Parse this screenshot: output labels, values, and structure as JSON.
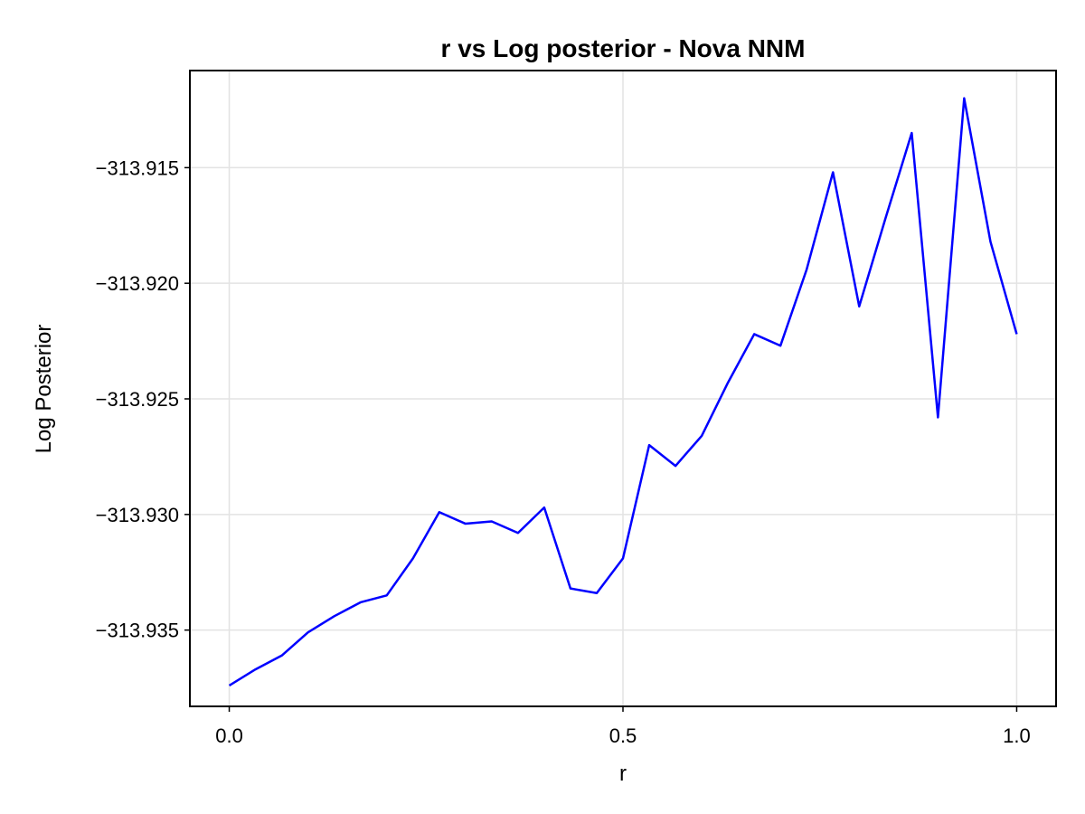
{
  "chart_data": {
    "type": "line",
    "title": "r vs Log posterior - Nova NNM",
    "xlabel": "r",
    "ylabel": "Log Posterior",
    "xlim": [
      -0.05,
      1.05
    ],
    "ylim": [
      -313.9383,
      -313.9108
    ],
    "grid": true,
    "x_ticks": [
      {
        "value": 0.0,
        "label": "0.0"
      },
      {
        "value": 0.5,
        "label": "0.5"
      },
      {
        "value": 1.0,
        "label": "1.0"
      }
    ],
    "y_ticks": [
      {
        "value": -313.935,
        "label": "−313.935"
      },
      {
        "value": -313.93,
        "label": "−313.930"
      },
      {
        "value": -313.925,
        "label": "−313.925"
      },
      {
        "value": -313.92,
        "label": "−313.920"
      },
      {
        "value": -313.915,
        "label": "−313.915"
      }
    ],
    "series": [
      {
        "color": "#0000ff",
        "x": [
          0.0,
          0.0333,
          0.0667,
          0.1,
          0.1333,
          0.1667,
          0.2,
          0.2333,
          0.2667,
          0.3,
          0.3333,
          0.3667,
          0.4,
          0.4333,
          0.4667,
          0.5,
          0.5333,
          0.5667,
          0.6,
          0.6333,
          0.6667,
          0.7,
          0.7333,
          0.7667,
          0.8,
          0.8333,
          0.8667,
          0.9,
          0.9333,
          0.9667,
          1.0
        ],
        "y": [
          -313.9374,
          -313.9367,
          -313.9361,
          -313.9351,
          -313.9344,
          -313.9338,
          -313.9335,
          -313.9319,
          -313.9299,
          -313.9304,
          -313.9303,
          -313.9308,
          -313.9297,
          -313.9332,
          -313.9334,
          -313.9319,
          -313.927,
          -313.9279,
          -313.9266,
          -313.9243,
          -313.9222,
          -313.9227,
          -313.9194,
          -313.9152,
          -313.921,
          -313.9172,
          -313.9135,
          -313.9258,
          -313.912,
          -313.9182,
          -313.9222
        ]
      }
    ]
  }
}
